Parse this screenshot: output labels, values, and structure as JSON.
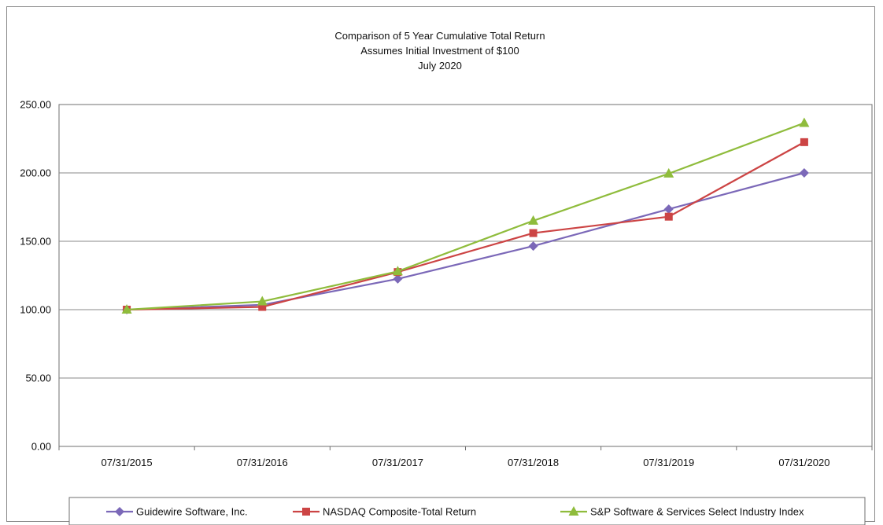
{
  "chart_data": {
    "type": "line",
    "title": [
      "Comparison of 5 Year Cumulative Total Return",
      "Assumes Initial Investment of $100",
      "July 2020"
    ],
    "categories": [
      "07/31/2015",
      "07/31/2016",
      "07/31/2017",
      "07/31/2018",
      "07/31/2019",
      "07/31/2020"
    ],
    "y_tick_labels": [
      "0.00",
      "50.00",
      "100.00",
      "150.00",
      "200.00",
      "250.00"
    ],
    "ylim": [
      0,
      250
    ],
    "grid": "horizontal",
    "legend_placement": "bottom",
    "series": [
      {
        "name": "Guidewire Software, Inc.",
        "marker": "diamond",
        "color": "#7b68b8",
        "values": [
          100.0,
          103.5,
          122.5,
          146.5,
          173.5,
          200.0
        ]
      },
      {
        "name": "NASDAQ Composite-Total Return",
        "marker": "square",
        "color": "#cc4444",
        "values": [
          100.0,
          102.0,
          127.5,
          156.0,
          168.0,
          222.5
        ]
      },
      {
        "name": "S&P Software & Services Select Industry Index",
        "marker": "triangle",
        "color": "#8fbc3c",
        "values": [
          100.0,
          106.0,
          128.0,
          165.0,
          199.5,
          236.5
        ]
      }
    ]
  }
}
